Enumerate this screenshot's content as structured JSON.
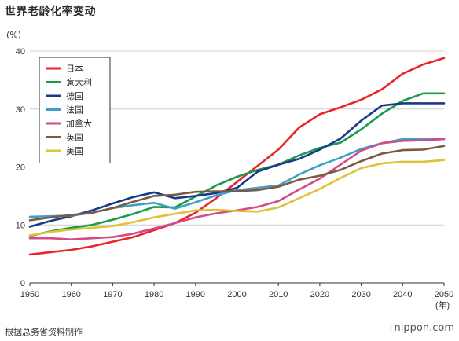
{
  "page": {
    "title": "世界老龄化率变动",
    "source": "根据总务省资料制作",
    "logo": "nippon.com"
  },
  "chart_data": {
    "type": "line",
    "title": "世界老龄化率变动",
    "ylabel": "(%)",
    "xlabel": "(年)",
    "ylim": [
      0,
      40
    ],
    "xlim": [
      1950,
      2050
    ],
    "yticks": [
      0,
      10,
      20,
      30,
      40
    ],
    "xticks": [
      1950,
      1960,
      1970,
      1980,
      1990,
      2000,
      2010,
      2020,
      2030,
      2040,
      2050
    ],
    "grid": true,
    "legend_position": "top-left",
    "x": [
      1950,
      1955,
      1960,
      1965,
      1970,
      1975,
      1980,
      1985,
      1990,
      1995,
      2000,
      2005,
      2010,
      2015,
      2020,
      2025,
      2030,
      2035,
      2040,
      2045,
      2050
    ],
    "series": [
      {
        "name": "日本",
        "color": "#e8262a",
        "values": [
          4.9,
          5.3,
          5.7,
          6.3,
          7.1,
          7.9,
          9.1,
          10.3,
          12.1,
          14.6,
          17.4,
          20.2,
          23.0,
          26.8,
          29.1,
          30.3,
          31.6,
          33.4,
          36.1,
          37.7,
          38.8
        ]
      },
      {
        "name": "意大利",
        "color": "#1a9a4a",
        "values": [
          8.1,
          8.9,
          9.5,
          10.0,
          10.9,
          11.9,
          13.1,
          13.0,
          14.9,
          16.8,
          18.3,
          19.5,
          20.4,
          22.0,
          23.3,
          24.2,
          26.5,
          29.2,
          31.4,
          32.7,
          32.7
        ]
      },
      {
        "name": "德国",
        "color": "#173a8c",
        "values": [
          9.7,
          10.7,
          11.5,
          12.5,
          13.7,
          14.8,
          15.6,
          14.6,
          15.0,
          15.5,
          16.4,
          19.2,
          20.4,
          21.4,
          23.0,
          24.9,
          28.0,
          30.6,
          31.0,
          31.0,
          31.0
        ]
      },
      {
        "name": "法国",
        "color": "#3f9fc9",
        "values": [
          11.4,
          11.5,
          11.6,
          12.1,
          12.9,
          13.4,
          13.8,
          12.8,
          13.9,
          15.1,
          16.0,
          16.4,
          16.8,
          18.7,
          20.3,
          21.6,
          23.1,
          24.1,
          24.8,
          24.8,
          24.8
        ]
      },
      {
        "name": "加拿大",
        "color": "#d44a8a",
        "values": [
          7.7,
          7.7,
          7.5,
          7.7,
          7.9,
          8.5,
          9.4,
          10.3,
          11.3,
          12.0,
          12.5,
          13.1,
          14.1,
          16.1,
          18.0,
          20.4,
          22.8,
          24.1,
          24.5,
          24.6,
          24.8
        ]
      },
      {
        "name": "英国",
        "color": "#7b5a3f",
        "values": [
          10.8,
          11.3,
          11.7,
          12.1,
          12.9,
          14.0,
          15.0,
          15.2,
          15.7,
          15.8,
          15.8,
          16.0,
          16.6,
          17.8,
          18.5,
          19.5,
          21.0,
          22.3,
          22.9,
          23.0,
          23.6
        ]
      },
      {
        "name": "美国",
        "color": "#dfc235",
        "values": [
          8.2,
          8.8,
          9.2,
          9.5,
          9.8,
          10.5,
          11.3,
          11.9,
          12.5,
          12.6,
          12.4,
          12.3,
          13.0,
          14.6,
          16.2,
          18.1,
          19.8,
          20.6,
          20.9,
          20.9,
          21.2
        ]
      }
    ]
  }
}
